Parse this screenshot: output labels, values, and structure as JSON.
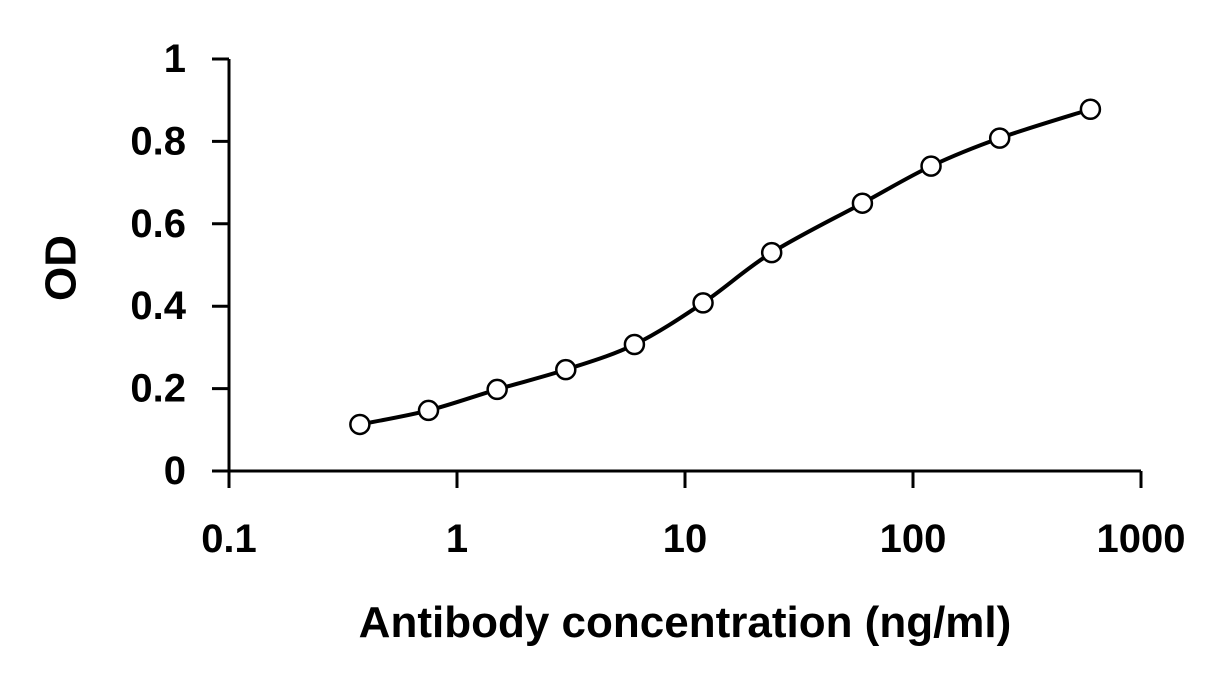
{
  "chart_data": {
    "type": "line",
    "xlabel": "Antibody concentration (ng/ml)",
    "ylabel": "OD",
    "xscale": "log",
    "xlim": [
      0.1,
      1000
    ],
    "ylim": [
      0,
      1
    ],
    "x_ticks": [
      "0.1",
      "1",
      "10",
      "100",
      "1000"
    ],
    "y_ticks": [
      "0",
      "0.2",
      "0.4",
      "0.6",
      "0.8",
      "1"
    ],
    "grid": false,
    "legend": "none",
    "series": [
      {
        "x": [
          0.375,
          0.75,
          1.5,
          3,
          6,
          12,
          24,
          60,
          120,
          240,
          600
        ],
        "y": [
          0.113,
          0.147,
          0.198,
          0.246,
          0.307,
          0.408,
          0.53,
          0.65,
          0.74,
          0.808,
          0.878
        ],
        "line_color": "#000000",
        "marker": "open-circle"
      }
    ]
  }
}
